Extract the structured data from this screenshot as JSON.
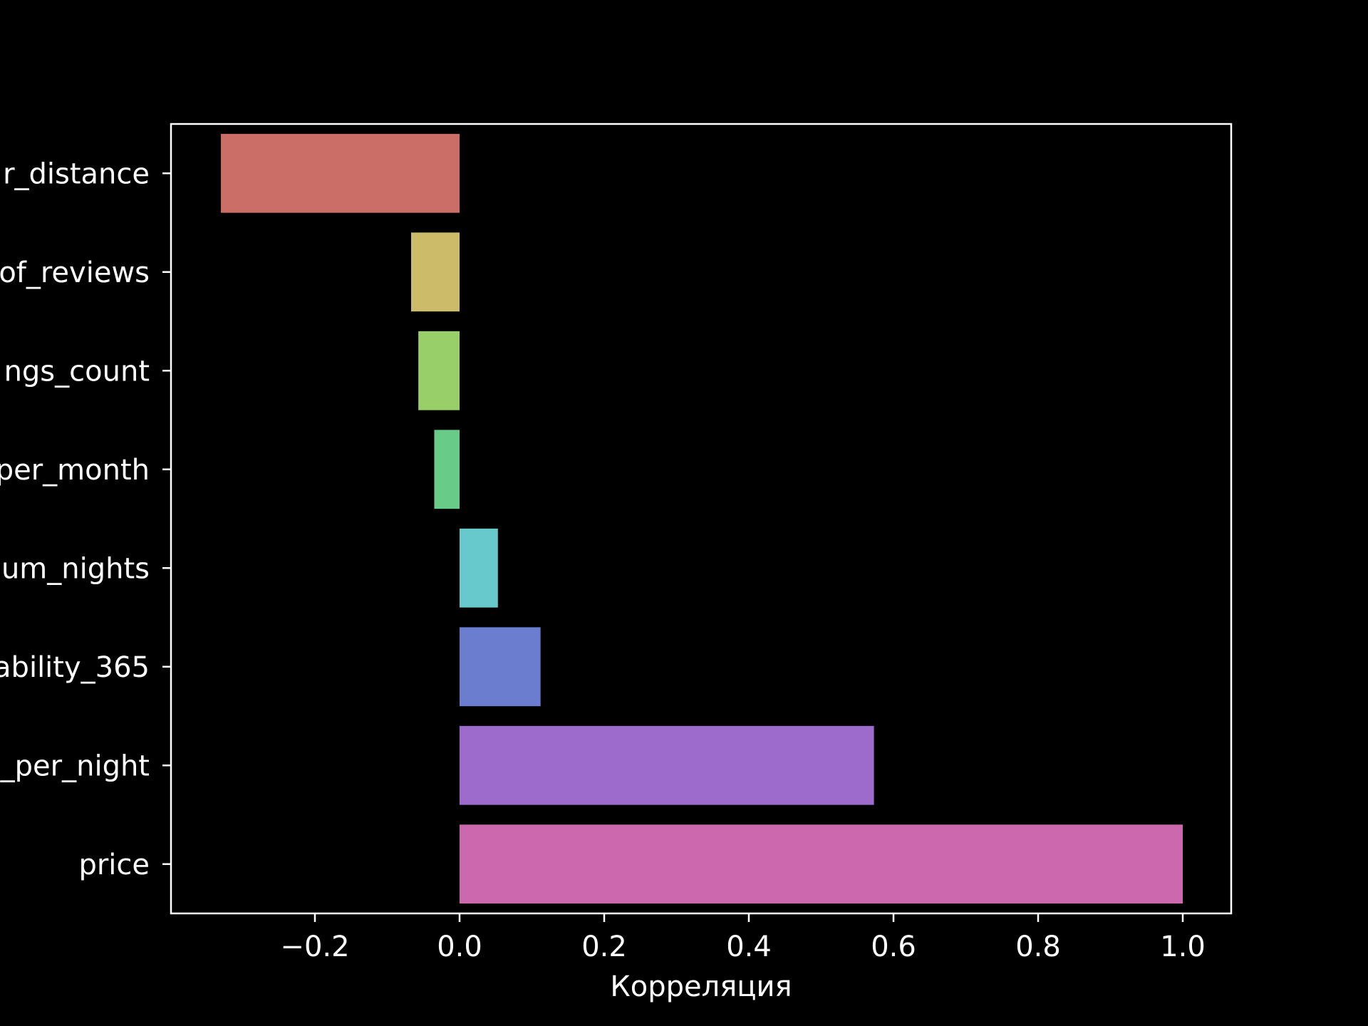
{
  "chart_data": {
    "type": "bar",
    "orientation": "horizontal",
    "categories": [
      "r_distance",
      "of_reviews",
      "ngs_count",
      "per_month",
      "um_nights",
      "ability_365",
      "_per_night",
      "price"
    ],
    "values": [
      -0.33,
      -0.067,
      -0.057,
      -0.035,
      0.053,
      0.112,
      0.573,
      1.0
    ],
    "colors": [
      "#cc6e68",
      "#ccbb68",
      "#99cf68",
      "#68cc88",
      "#68c9cc",
      "#6a7dcf",
      "#9d6bcc",
      "#cc68ae"
    ],
    "xlabel": "Корреляция",
    "ylabel": "",
    "title": "",
    "xlim": [
      -0.4,
      1.067
    ],
    "xticks": [
      -0.2,
      0.0,
      0.2,
      0.4,
      0.6,
      0.8,
      1.0
    ],
    "xtick_labels": [
      "−0.2",
      "0.0",
      "0.2",
      "0.4",
      "0.6",
      "0.8",
      "1.0"
    ],
    "grid": false,
    "background": "#000000",
    "foreground": "#ffffff"
  }
}
